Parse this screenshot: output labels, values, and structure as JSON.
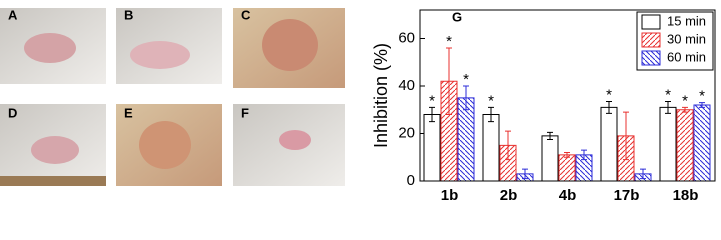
{
  "panels": [
    "A",
    "B",
    "C",
    "D",
    "E",
    "F"
  ],
  "chart_data": {
    "type": "bar",
    "panel_label": "G",
    "y_label": "Inhibition (%)",
    "categories": [
      "1b",
      "2b",
      "4b",
      "17b",
      "18b"
    ],
    "ylim": [
      0,
      72
    ],
    "yticks": [
      0,
      20,
      40,
      60
    ],
    "legend": "top-right",
    "series": [
      {
        "name": "15 min",
        "color": "#000000",
        "hatch": "none",
        "values": [
          28,
          28,
          19,
          31,
          31
        ],
        "errors": [
          3,
          3,
          1.5,
          2.5,
          2.5
        ],
        "sig_labels": [
          "*",
          "*",
          null,
          "*",
          "*"
        ]
      },
      {
        "name": "30 min",
        "color": "#e8312f",
        "hatch": "up",
        "values": [
          42,
          15,
          11,
          19,
          30
        ],
        "errors": [
          14,
          6,
          1,
          10,
          1
        ],
        "sig_labels": [
          "*",
          null,
          null,
          null,
          "*"
        ]
      },
      {
        "name": "60 min",
        "color": "#2b2bd8",
        "hatch": "down",
        "values": [
          35,
          3,
          11,
          3,
          32
        ],
        "errors": [
          5,
          2,
          2,
          2,
          1
        ],
        "sig_labels": [
          "*",
          null,
          null,
          null,
          "*"
        ]
      }
    ]
  }
}
